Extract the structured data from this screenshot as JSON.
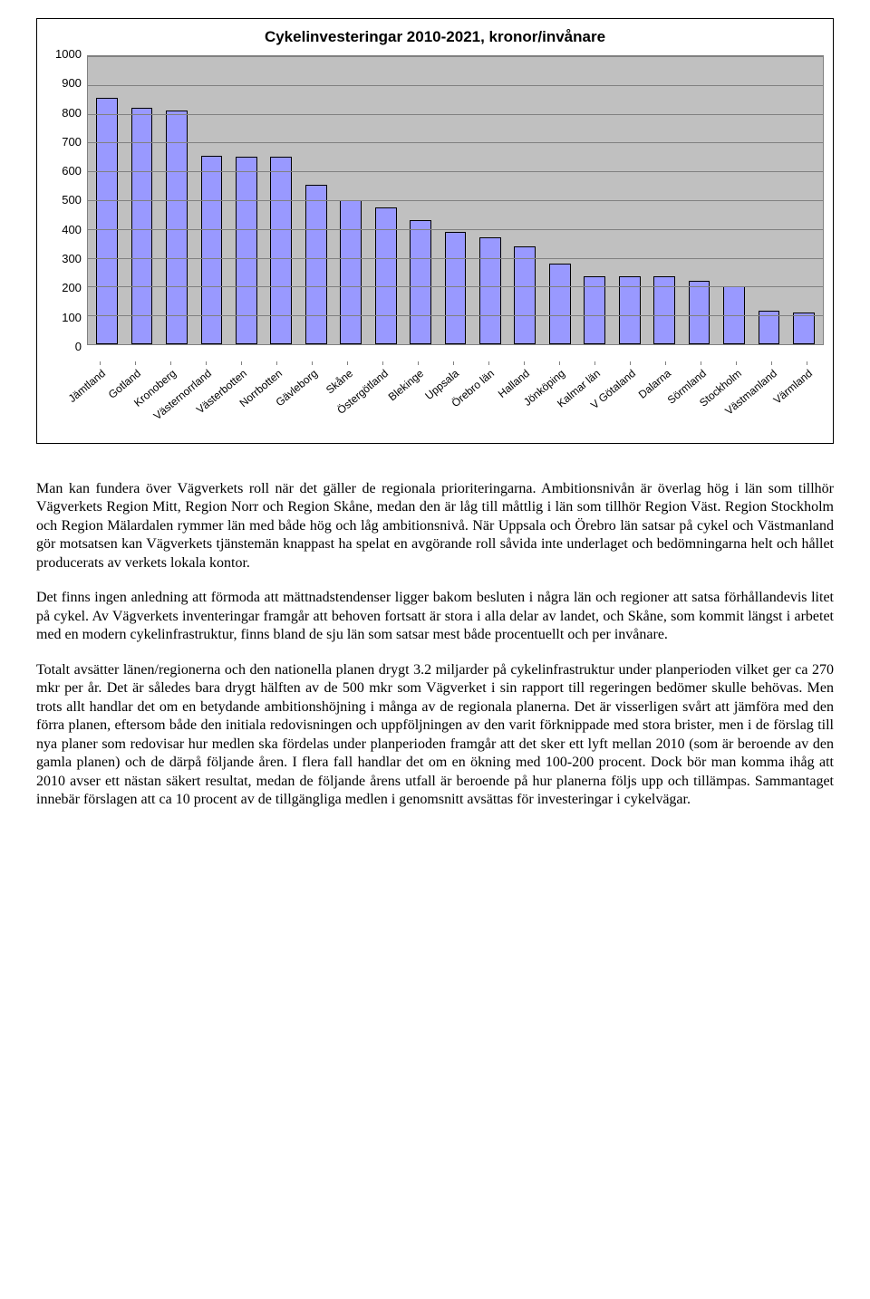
{
  "chart": {
    "type": "bar",
    "title": "Cykelinvesteringar 2010-2021, kronor/invånare",
    "title_fontsize": 17,
    "background_color": "#c0c0c0",
    "grid_color": "#808080",
    "axis_color": "#808080",
    "bar_fill": "#9999ff",
    "bar_border": "#000000",
    "font_family": "Arial",
    "label_fontsize": 13,
    "ylim": [
      0,
      1000
    ],
    "ytick_step": 100,
    "yticks": [
      1000,
      900,
      800,
      700,
      600,
      500,
      400,
      300,
      200,
      100,
      0
    ],
    "categories": [
      "Jämtland",
      "Gotland",
      "Kronoberg",
      "Västernorrland",
      "Västerbotten",
      "Norrbotten",
      "Gävleborg",
      "Skåne",
      "Östergötland",
      "Blekinge",
      "Uppsala",
      "Örebro län",
      "Halland",
      "Jönköping",
      "Kalmar län",
      "V Götaland",
      "Dalarna",
      "Sörmland",
      "Stockholm",
      "Västmanland",
      "Värmland"
    ],
    "values": [
      855,
      820,
      810,
      655,
      650,
      650,
      555,
      500,
      475,
      430,
      390,
      370,
      340,
      280,
      235,
      235,
      235,
      220,
      200,
      115,
      110
    ],
    "bar_width": 0.62
  },
  "paragraphs": [
    "Man kan fundera över Vägverkets roll när det gäller de regionala prioriteringarna. Ambitionsnivån är överlag hög i län som tillhör Vägverkets Region Mitt, Region Norr och Region Skåne, medan den är låg till måttlig i län som tillhör Region Väst. Region Stockholm och Region Mälardalen rymmer län med både hög och låg ambitionsnivå. När Uppsala och Örebro län satsar på cykel och Västmanland gör motsatsen kan Vägverkets tjänstemän knappast ha spelat en avgörande roll såvida inte underlaget och bedömningarna helt och hållet producerats av verkets lokala kontor.",
    "Det finns ingen anledning att förmoda att mättnadstendenser ligger bakom besluten i några län och regioner att satsa förhållandevis litet på cykel. Av Vägverkets inventeringar framgår att behoven fortsatt är stora i alla delar av landet, och Skåne, som kommit längst i arbetet med en modern cykelinfrastruktur, finns bland de sju län som satsar mest både procentuellt och per invånare.",
    "Totalt avsätter länen/regionerna och den nationella planen drygt 3.2 miljarder på cykelinfrastruktur under planperioden vilket ger ca 270 mkr per år. Det är således bara drygt hälften av de 500 mkr som Vägverket i sin rapport till regeringen bedömer skulle behövas. Men trots allt handlar det om en betydande ambitionshöjning i många av de regionala planerna. Det är visserligen svårt att jämföra med den förra planen, eftersom både den initiala redovisningen och uppföljningen av den varit förknippade med stora brister, men i de förslag till nya planer som redovisar hur medlen ska fördelas under planperioden framgår att det sker ett lyft mellan 2010 (som är beroende av den gamla planen) och de därpå följande åren. I flera fall handlar det om en ökning med 100-200 procent. Dock bör man komma ihåg att 2010 avser ett nästan säkert resultat, medan de följande årens utfall är beroende på hur planerna följs upp och tillämpas. Sammantaget innebär förslagen att ca 10 procent av de tillgängliga medlen i genomsnitt avsättas för investeringar i cykelvägar."
  ]
}
